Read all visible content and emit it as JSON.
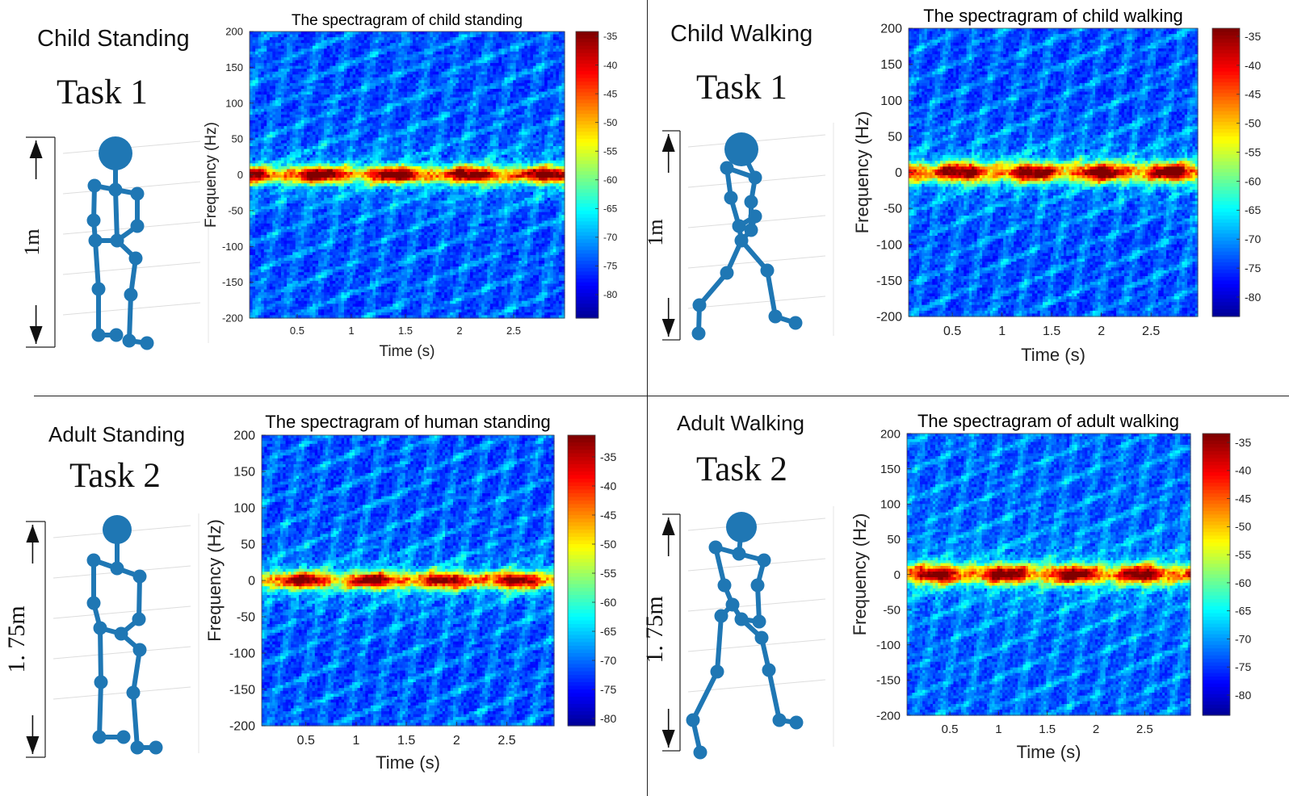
{
  "panels": [
    {
      "scene_title": "Child Standing",
      "task": "Task 1",
      "height_label": "1m",
      "pose": "standing"
    },
    {
      "scene_title": "Child Walking",
      "task": "Task 1",
      "height_label": "1m",
      "pose": "walking"
    },
    {
      "scene_title": "Adult Standing",
      "task": "Task 2",
      "height_label": "1. 75m",
      "pose": "standing"
    },
    {
      "scene_title": "Adult Walking",
      "task": "Task 2",
      "height_label": "1. 75m",
      "pose": "walking"
    }
  ],
  "colors": {
    "figure": "#1f77b4",
    "colormap": [
      "#00008f",
      "#0000ff",
      "#00ffff",
      "#ffff00",
      "#ff0000",
      "#800000"
    ]
  },
  "chart_data": [
    {
      "type": "heatmap",
      "title": "The spectragram of child standing",
      "xlabel": "Time (s)",
      "ylabel": "Frequency (Hz)",
      "xlim": [
        0.06,
        2.97
      ],
      "ylim": [
        -200,
        200
      ],
      "xticks": [
        "0.5",
        "1",
        "1.5",
        "2",
        "2.5"
      ],
      "xtick_values": [
        0.5,
        1,
        1.5,
        2,
        2.5
      ],
      "yticks": [
        "200",
        "150",
        "100",
        "50",
        "0",
        "-50",
        "-100",
        "-150",
        "-200"
      ],
      "ytick_values": [
        200,
        150,
        100,
        50,
        0,
        -50,
        -100,
        -150,
        -200
      ],
      "colorbar_ticks": [
        "-35",
        "-40",
        "-45",
        "-50",
        "-55",
        "-60",
        "-65",
        "-70",
        "-75",
        "-80"
      ],
      "colorbar_values": [
        -35,
        -40,
        -45,
        -50,
        -55,
        -60,
        -65,
        -70,
        -75,
        -80
      ],
      "clim": [
        -84,
        -34
      ],
      "band_center_hz": 0,
      "band_halfwidth_hz": 14,
      "peak_db": -38,
      "background_db": -78
    },
    {
      "type": "heatmap",
      "title": "The spectragram of child walking",
      "xlabel": "Time (s)",
      "ylabel": "Frequency (Hz)",
      "xlim": [
        0.06,
        2.97
      ],
      "ylim": [
        -200,
        200
      ],
      "xticks": [
        "0.5",
        "1",
        "1.5",
        "2",
        "2.5"
      ],
      "xtick_values": [
        0.5,
        1,
        1.5,
        2,
        2.5
      ],
      "yticks": [
        "200",
        "150",
        "100",
        "50",
        "0",
        "-50",
        "-100",
        "-150",
        "-200"
      ],
      "ytick_values": [
        200,
        150,
        100,
        50,
        0,
        -50,
        -100,
        -150,
        -200
      ],
      "colorbar_ticks": [
        "-35",
        "-40",
        "-45",
        "-50",
        "-55",
        "-60",
        "-65",
        "-70",
        "-75",
        "-80"
      ],
      "colorbar_values": [
        -35,
        -40,
        -45,
        -50,
        -55,
        -60,
        -65,
        -70,
        -75,
        -80
      ],
      "clim": [
        -84,
        -34
      ],
      "band_center_hz": 0,
      "band_halfwidth_hz": 16,
      "peak_db": -38,
      "background_db": -78
    },
    {
      "type": "heatmap",
      "title": "The spectragram of human standing",
      "xlabel": "Time (s)",
      "ylabel": "Frequency (Hz)",
      "xlim": [
        0.06,
        2.97
      ],
      "ylim": [
        -200,
        200
      ],
      "xticks": [
        "0.5",
        "1",
        "1.5",
        "2",
        "2.5"
      ],
      "xtick_values": [
        0.5,
        1,
        1.5,
        2,
        2.5
      ],
      "yticks": [
        "200",
        "150",
        "100",
        "50",
        "0",
        "-50",
        "-100",
        "-150",
        "-200"
      ],
      "ytick_values": [
        200,
        150,
        100,
        50,
        0,
        -50,
        -100,
        -150,
        -200
      ],
      "colorbar_ticks": [
        "-35",
        "-40",
        "-45",
        "-50",
        "-55",
        "-60",
        "-65",
        "-70",
        "-75",
        "-80"
      ],
      "colorbar_values": [
        -35,
        -40,
        -45,
        -50,
        -55,
        -60,
        -65,
        -70,
        -75,
        -80
      ],
      "clim": [
        -82,
        -32
      ],
      "band_center_hz": 0,
      "band_halfwidth_hz": 14,
      "peak_db": -38,
      "background_db": -76
    },
    {
      "type": "heatmap",
      "title": "The spectragram of adult walking",
      "xlabel": "Time (s)",
      "ylabel": "Frequency (Hz)",
      "xlim": [
        0.06,
        2.97
      ],
      "ylim": [
        -200,
        200
      ],
      "xticks": [
        "0.5",
        "1",
        "1.5",
        "2",
        "2.5"
      ],
      "xtick_values": [
        0.5,
        1,
        1.5,
        2,
        2.5
      ],
      "yticks": [
        "200",
        "150",
        "100",
        "50",
        "0",
        "-50",
        "-100",
        "-150",
        "-200"
      ],
      "ytick_values": [
        200,
        150,
        100,
        50,
        0,
        -50,
        -100,
        -150,
        -200
      ],
      "colorbar_ticks": [
        "-35",
        "-40",
        "-45",
        "-50",
        "-55",
        "-60",
        "-65",
        "-70",
        "-75",
        "-80"
      ],
      "colorbar_values": [
        -35,
        -40,
        -45,
        -50,
        -55,
        -60,
        -65,
        -70,
        -75,
        -80
      ],
      "clim": [
        -84,
        -33
      ],
      "band_center_hz": 0,
      "band_halfwidth_hz": 16,
      "peak_db": -37,
      "background_db": -77
    }
  ]
}
